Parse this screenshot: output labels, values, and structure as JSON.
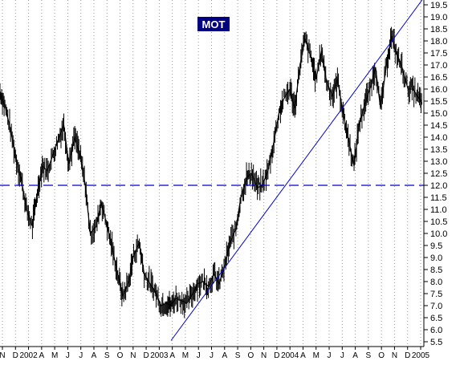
{
  "chart_data": {
    "type": "line",
    "style": "ohlc-bars",
    "title": "MOT",
    "title_bg": "#000080",
    "title_fg": "#ffffff",
    "price_color": "#000000",
    "line_color": "#0000cc",
    "grid": "vertical dotted",
    "y_axis_side": "right",
    "ylim": [
      5.3,
      19.7
    ],
    "yticks": [
      "19.5",
      "19.0",
      "18.5",
      "18.0",
      "17.5",
      "17.0",
      "16.5",
      "16.0",
      "15.5",
      "15.0",
      "14.5",
      "14.0",
      "13.5",
      "13.0",
      "12.5",
      "12.0",
      "11.5",
      "11.0",
      "10.5",
      "10.0",
      "9.5",
      "9.0",
      "8.5",
      "8.0",
      "7.5",
      "7.0",
      "6.5",
      "6.0",
      "5.5"
    ],
    "xticks": [
      "N",
      "D",
      "2002",
      "A",
      "M",
      "J",
      "J",
      "A",
      "S",
      "O",
      "N",
      "D",
      "2003",
      "A",
      "M",
      "J",
      "J",
      "A",
      "S",
      "O",
      "N",
      "D",
      "2004",
      "A",
      "M",
      "J",
      "J",
      "A",
      "S",
      "O",
      "N",
      "D",
      "2005"
    ],
    "xlim": [
      "2001-11-01",
      "2005-02-15"
    ],
    "series": [
      {
        "values": [
          [
            "2001-11-01",
            15.9
          ],
          [
            "2001-11-15",
            15.3
          ],
          [
            "2001-12-01",
            14.3
          ],
          [
            "2001-12-15",
            13.2
          ],
          [
            "2002-01-01",
            12.2
          ],
          [
            "2002-01-15",
            11.0
          ],
          [
            "2002-02-01",
            10.3
          ],
          [
            "2002-02-15",
            11.7
          ],
          [
            "2002-03-01",
            12.8
          ],
          [
            "2002-03-15",
            12.6
          ],
          [
            "2002-04-01",
            13.3
          ],
          [
            "2002-04-15",
            13.9
          ],
          [
            "2002-05-01",
            14.5
          ],
          [
            "2002-05-15",
            12.9
          ],
          [
            "2002-06-01",
            14.0
          ],
          [
            "2002-06-15",
            13.3
          ],
          [
            "2002-07-01",
            12.0
          ],
          [
            "2002-07-15",
            10.0
          ],
          [
            "2002-08-01",
            10.3
          ],
          [
            "2002-08-15",
            11.3
          ],
          [
            "2002-09-01",
            10.3
          ],
          [
            "2002-09-15",
            9.4
          ],
          [
            "2002-10-01",
            8.3
          ],
          [
            "2002-10-15",
            7.4
          ],
          [
            "2002-11-01",
            8.0
          ],
          [
            "2002-11-15",
            9.1
          ],
          [
            "2002-12-01",
            9.6
          ],
          [
            "2002-12-15",
            8.3
          ],
          [
            "2003-01-01",
            7.9
          ],
          [
            "2003-01-15",
            7.6
          ],
          [
            "2003-02-01",
            7.0
          ],
          [
            "2003-02-15",
            7.1
          ],
          [
            "2003-03-01",
            7.0
          ],
          [
            "2003-03-15",
            7.3
          ],
          [
            "2003-04-01",
            7.2
          ],
          [
            "2003-04-15",
            7.1
          ],
          [
            "2003-05-01",
            7.5
          ],
          [
            "2003-05-15",
            7.9
          ],
          [
            "2003-06-01",
            8.0
          ],
          [
            "2003-06-15",
            7.8
          ],
          [
            "2003-07-01",
            8.3
          ],
          [
            "2003-07-15",
            7.9
          ],
          [
            "2003-08-01",
            8.7
          ],
          [
            "2003-08-15",
            9.6
          ],
          [
            "2003-09-01",
            10.2
          ],
          [
            "2003-09-15",
            11.5
          ],
          [
            "2003-10-01",
            12.3
          ],
          [
            "2003-10-15",
            12.5
          ],
          [
            "2003-11-01",
            11.9
          ],
          [
            "2003-11-15",
            12.0
          ],
          [
            "2003-12-01",
            12.6
          ],
          [
            "2003-12-15",
            13.6
          ],
          [
            "2004-01-01",
            15.0
          ],
          [
            "2004-01-15",
            15.6
          ],
          [
            "2004-02-01",
            16.0
          ],
          [
            "2004-02-15",
            15.2
          ],
          [
            "2004-03-01",
            17.0
          ],
          [
            "2004-03-15",
            18.1
          ],
          [
            "2004-04-01",
            17.3
          ],
          [
            "2004-04-15",
            16.4
          ],
          [
            "2004-05-01",
            17.6
          ],
          [
            "2004-05-15",
            16.3
          ],
          [
            "2004-06-01",
            15.7
          ],
          [
            "2004-06-15",
            16.4
          ],
          [
            "2004-07-01",
            15.0
          ],
          [
            "2004-07-15",
            14.0
          ],
          [
            "2004-08-01",
            12.8
          ],
          [
            "2004-08-15",
            14.5
          ],
          [
            "2004-09-01",
            15.4
          ],
          [
            "2004-09-15",
            16.0
          ],
          [
            "2004-10-01",
            16.9
          ],
          [
            "2004-10-15",
            15.2
          ],
          [
            "2004-11-01",
            17.0
          ],
          [
            "2004-11-15",
            18.2
          ],
          [
            "2004-12-01",
            17.4
          ],
          [
            "2004-12-15",
            16.9
          ],
          [
            "2005-01-01",
            16.0
          ],
          [
            "2005-01-15",
            16.0
          ],
          [
            "2005-02-01",
            15.6
          ],
          [
            "2005-02-10",
            15.4
          ]
        ]
      }
    ],
    "annotations": [
      {
        "type": "hline",
        "y": 12.0,
        "style": "dashed"
      },
      {
        "type": "trendline",
        "from": [
          "2003-03-01",
          5.55
        ],
        "to": [
          "2005-02-10",
          19.7
        ],
        "style": "solid"
      }
    ]
  }
}
